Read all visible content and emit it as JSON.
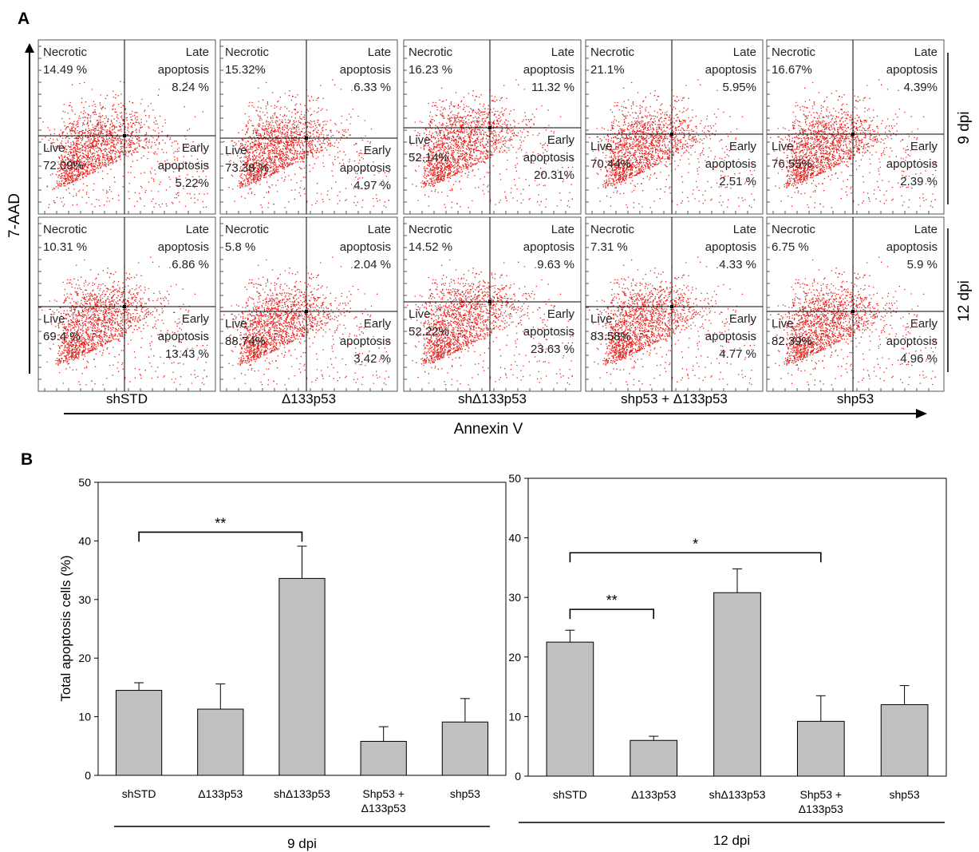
{
  "panel_a": {
    "label": "A",
    "y_axis_label": "7-AAD",
    "x_axis_label": "Annexin  V",
    "row_labels": [
      "9 dpi",
      "12 dpi"
    ],
    "conditions": [
      "shSTD",
      "Δ133p53",
      "shΔ133p53",
      "shp53 + Δ133p53",
      "shp53"
    ],
    "quadrant_names": {
      "necrotic": "Necrotic",
      "late": [
        "Late",
        "apoptosis"
      ],
      "live": "Live",
      "early": [
        "Early",
        "apoptosis"
      ]
    },
    "rows": [
      [
        {
          "necrotic": "14.49 %",
          "late": "8.24 %",
          "live": "72.09%",
          "early": "5.22%"
        },
        {
          "necrotic": "15.32%",
          "late": "6.33 %",
          "live": "73.38 %",
          "early": "4.97 %"
        },
        {
          "necrotic": "16.23 %",
          "late": "11.32 %",
          "live": "52.14%",
          "early": "20.31%"
        },
        {
          "necrotic": "21.1%",
          "late": "5.95%",
          "live": "70.44%",
          "early": "2.51 %"
        },
        {
          "necrotic": "16.67%",
          "late": "4.39%",
          "live": "76.55%",
          "early": "2.39 %"
        }
      ],
      [
        {
          "necrotic": "10.31 %",
          "late": "6.86 %",
          "live": "69.4 %",
          "early": "13.43 %"
        },
        {
          "necrotic": "5.8 %",
          "late": "2.04 %",
          "live": "88.74%",
          "early": "3.42 %"
        },
        {
          "necrotic": "14.52 %",
          "late": "9.63 %",
          "live": "52.22%",
          "early": "23.63 %"
        },
        {
          "necrotic": "7.31 %",
          "late": "4.33 %",
          "live": "83.58%",
          "early": "4.77 %"
        },
        {
          "necrotic": "6.75 %",
          "late": "5.9 %",
          "live": "82.39%",
          "early": "4.96 %"
        }
      ]
    ],
    "dot_color": "#e8201c"
  },
  "panel_b": {
    "label": "B",
    "y_label": "Total apoptosis cells (%)",
    "bar_color": "#c0c0c0",
    "chart_data": [
      {
        "type": "bar",
        "group_label": "9 dpi",
        "categories": [
          [
            "shSTD"
          ],
          [
            "Δ133p53"
          ],
          [
            "shΔ133p53"
          ],
          [
            "Shp53 +",
            "Δ133p53"
          ],
          [
            "shp53"
          ]
        ],
        "values": [
          14.5,
          11.3,
          33.6,
          5.8,
          9.1
        ],
        "errors": [
          1.3,
          4.3,
          5.5,
          2.5,
          4.0
        ],
        "ylim": [
          0,
          50
        ],
        "yticks": [
          0,
          10,
          20,
          30,
          40,
          50
        ],
        "significance": [
          {
            "from": 0,
            "to": 2,
            "label": "**",
            "y": 41.5
          }
        ]
      },
      {
        "type": "bar",
        "group_label": "12 dpi",
        "categories": [
          [
            "shSTD"
          ],
          [
            "Δ133p53"
          ],
          [
            "shΔ133p53"
          ],
          [
            "Shp53 +",
            "Δ133p53"
          ],
          [
            "shp53"
          ]
        ],
        "values": [
          22.5,
          6.0,
          30.8,
          9.2,
          12.0
        ],
        "errors": [
          2.0,
          0.7,
          4.0,
          4.3,
          3.2
        ],
        "ylim": [
          0,
          50
        ],
        "yticks": [
          0,
          10,
          20,
          30,
          40,
          50
        ],
        "significance": [
          {
            "from": 0,
            "to": 1,
            "label": "**",
            "y": 28.0
          },
          {
            "from": 0,
            "to": 3,
            "label": "*",
            "y": 37.5
          }
        ]
      }
    ]
  }
}
